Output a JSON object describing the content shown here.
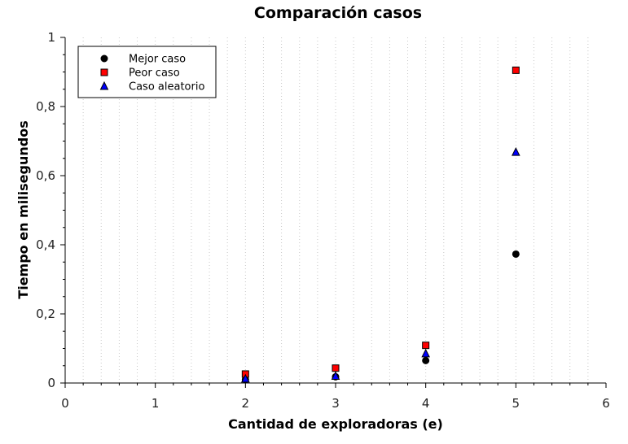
{
  "chart_data": {
    "type": "scatter",
    "title": "Comparación casos",
    "xlabel": "Cantidad de exploradoras (e)",
    "ylabel": "Tiempo en milisegundos",
    "xlim": [
      0,
      6
    ],
    "ylim": [
      0,
      1
    ],
    "x_ticks": [
      "0",
      "1",
      "2",
      "3",
      "4",
      "5",
      "6"
    ],
    "y_ticks": [
      "0",
      "0,2",
      "0,4",
      "0,6",
      "0,8",
      "1"
    ],
    "grid": "vertical minor dotted",
    "legend_position": "top-left",
    "series": [
      {
        "name": "Mejor caso",
        "marker": "circle",
        "color": "#000000",
        "x": [
          2,
          3,
          4,
          5
        ],
        "y": [
          0.01,
          0.018,
          0.065,
          0.373
        ]
      },
      {
        "name": "Peor caso",
        "marker": "square",
        "color": "#ff0000",
        "x": [
          2,
          3,
          4,
          5
        ],
        "y": [
          0.026,
          0.043,
          0.109,
          0.905
        ]
      },
      {
        "name": "Caso aleatorio",
        "marker": "triangle",
        "color": "#0000ff",
        "x": [
          2,
          3,
          4,
          5
        ],
        "y": [
          0.012,
          0.02,
          0.085,
          0.668
        ]
      }
    ]
  }
}
